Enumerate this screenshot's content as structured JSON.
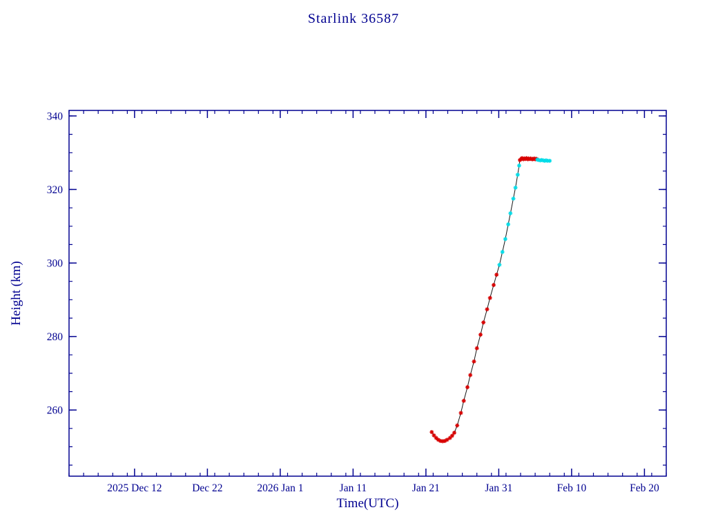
{
  "colors": {
    "axis": "#000090",
    "line": "#151515",
    "background": "#ffffff"
  },
  "chart_data": {
    "type": "line",
    "title": "Starlink 36587",
    "xlabel": "Time(UTC)",
    "ylabel": "Height (km)",
    "x_unit": "days relative to 2025-12-31",
    "xlim": [
      -28,
      54
    ],
    "ylim": [
      242,
      341.5
    ],
    "x_minor_step": 2,
    "y_minor_step": 5,
    "x_ticks": [
      {
        "value": -19,
        "label": "2025 Dec 12"
      },
      {
        "value": -9,
        "label": "Dec 22"
      },
      {
        "value": 1,
        "label": "2026 Jan  1"
      },
      {
        "value": 11,
        "label": "Jan 11"
      },
      {
        "value": 21,
        "label": "Jan 21"
      },
      {
        "value": 31,
        "label": "Jan 31"
      },
      {
        "value": 41,
        "label": "Feb 10"
      },
      {
        "value": 51,
        "label": "Feb 20"
      }
    ],
    "y_ticks": [
      {
        "value": 260,
        "label": "260"
      },
      {
        "value": 280,
        "label": "280"
      },
      {
        "value": 300,
        "label": "300"
      },
      {
        "value": 320,
        "label": "320"
      },
      {
        "value": 340,
        "label": "340"
      }
    ],
    "series": [
      {
        "name": "red",
        "color": "#d80000",
        "points": [
          [
            21.8,
            254.0
          ],
          [
            22.1,
            253.1
          ],
          [
            22.4,
            252.4
          ],
          [
            22.7,
            251.9
          ],
          [
            23.0,
            251.6
          ],
          [
            23.3,
            251.5
          ],
          [
            23.6,
            251.6
          ],
          [
            23.9,
            251.9
          ],
          [
            24.3,
            252.4
          ],
          [
            24.6,
            253.0
          ],
          [
            24.9,
            253.8
          ],
          [
            25.3,
            255.8
          ],
          [
            25.8,
            259.2
          ],
          [
            26.2,
            262.5
          ],
          [
            26.7,
            266.2
          ],
          [
            27.1,
            269.5
          ],
          [
            27.6,
            273.2
          ],
          [
            28.0,
            276.8
          ],
          [
            28.5,
            280.5
          ],
          [
            28.9,
            283.8
          ],
          [
            29.4,
            287.4
          ],
          [
            29.8,
            290.5
          ],
          [
            30.3,
            294.0
          ],
          [
            30.7,
            296.8
          ],
          [
            33.9,
            328.0
          ],
          [
            34.1,
            328.3
          ],
          [
            34.2,
            328.5
          ],
          [
            34.4,
            328.2
          ],
          [
            34.5,
            328.4
          ],
          [
            34.7,
            328.3
          ],
          [
            34.8,
            328.5
          ],
          [
            35.0,
            328.2
          ],
          [
            35.1,
            328.4
          ],
          [
            35.3,
            328.3
          ],
          [
            35.4,
            328.4
          ],
          [
            35.6,
            328.2
          ],
          [
            35.7,
            328.3
          ],
          [
            35.9,
            328.4
          ],
          [
            36.0,
            328.2
          ],
          [
            36.2,
            328.3
          ]
        ]
      },
      {
        "name": "cyan",
        "color": "#00dce8",
        "points": [
          [
            31.1,
            299.5
          ],
          [
            31.5,
            303.0
          ],
          [
            31.9,
            306.5
          ],
          [
            32.3,
            310.5
          ],
          [
            32.6,
            313.5
          ],
          [
            33.0,
            317.5
          ],
          [
            33.3,
            320.5
          ],
          [
            33.6,
            324.0
          ],
          [
            33.8,
            326.5
          ],
          [
            36.3,
            328.1
          ],
          [
            36.5,
            328.0
          ],
          [
            36.7,
            327.9
          ],
          [
            36.9,
            328.0
          ],
          [
            37.1,
            327.9
          ],
          [
            37.3,
            327.8
          ],
          [
            37.5,
            327.9
          ],
          [
            37.7,
            327.8
          ],
          [
            38.0,
            327.8
          ]
        ]
      }
    ]
  }
}
